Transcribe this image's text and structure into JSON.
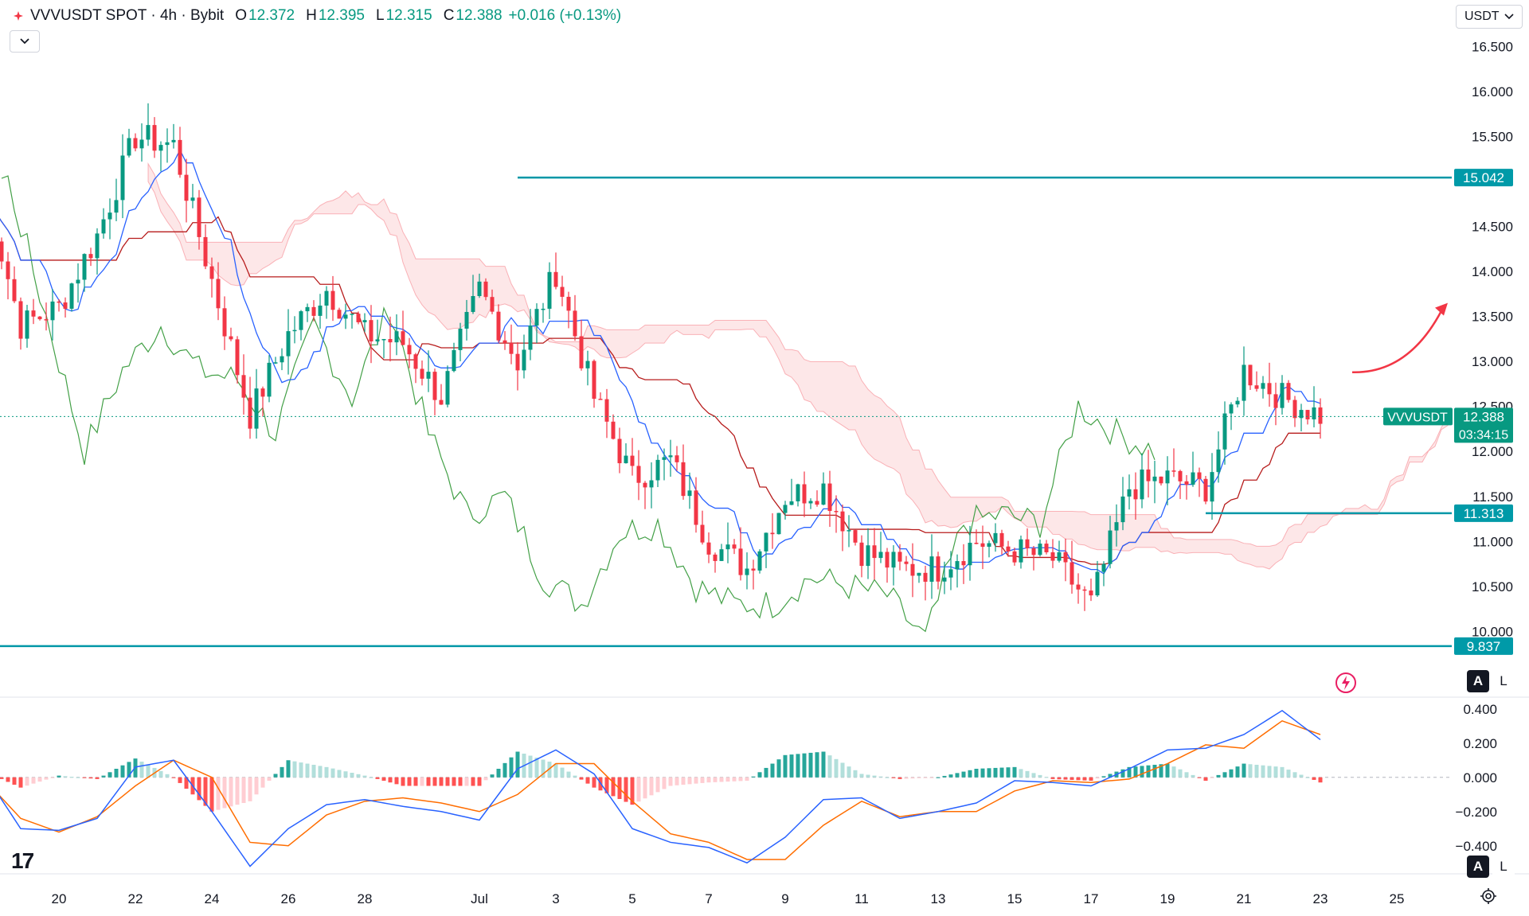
{
  "header": {
    "symbol": "VVVUSDT SPOT · 4h · Bybit",
    "open_label": "O",
    "open": "12.372",
    "high_label": "H",
    "high": "12.395",
    "low_label": "L",
    "low": "12.315",
    "close_label": "C",
    "close": "12.388",
    "change": "+0.016 (+0.13%)"
  },
  "currency": "USDT",
  "scale_buttons": {
    "auto": "A",
    "log": "L"
  },
  "icons": [
    "bybit-logo-icon",
    "chevron-down-icon",
    "flash-icon",
    "settings-icon",
    "tradingview-logo-icon"
  ],
  "logo_text": "17",
  "colors": {
    "up": "#089981",
    "down": "#f23645",
    "level_line": "#0097a7",
    "tenkan": "#2962ff",
    "kijun": "#b71c1c",
    "chikou": "#43a047",
    "macd": "#2962ff",
    "signal": "#ff6d00",
    "arrow": "#f23645"
  },
  "chart_data": {
    "type": "candlestick",
    "price_axis": {
      "ticks": [
        "16.500",
        "16.000",
        "15.500",
        "15.000",
        "14.500",
        "14.000",
        "13.500",
        "13.000",
        "12.500",
        "12.000",
        "11.500",
        "11.000",
        "10.500",
        "10.000"
      ],
      "range": [
        9.65,
        16.75
      ]
    },
    "x_axis": {
      "labels": [
        "20",
        "22",
        "24",
        "26",
        "28",
        "Jul",
        "3",
        "5",
        "7",
        "9",
        "11",
        "13",
        "15",
        "17",
        "19",
        "21",
        "23",
        "25"
      ]
    },
    "levels": [
      {
        "label": "15.042",
        "price": 15.042,
        "from_date": "Jul 2"
      },
      {
        "label": "11.313",
        "price": 11.313,
        "from_date": "Jul 20"
      },
      {
        "label": "9.837",
        "price": 9.837,
        "from_date": "Jun 18"
      }
    ],
    "last_price": {
      "symbol": "VVVUSDT",
      "price": "12.388",
      "countdown": "03:34:15"
    },
    "projection": {
      "type": "arrow",
      "direction": "up",
      "from_price": 12.88,
      "to_price": 13.65
    },
    "price_path": [
      [
        "Jun 18",
        15.0
      ],
      [
        "Jun 19",
        13.4
      ],
      [
        "Jun 20",
        13.6
      ],
      [
        "Jun 21",
        14.4
      ],
      [
        "Jun 22",
        15.5
      ],
      [
        "Jun 23",
        15.4
      ],
      [
        "Jun 24",
        13.9
      ],
      [
        "Jun 25",
        12.4
      ],
      [
        "Jun 26",
        13.3
      ],
      [
        "Jun 27",
        13.8
      ],
      [
        "Jun 28",
        13.3
      ],
      [
        "Jun 29",
        13.2
      ],
      [
        "Jun 30",
        12.6
      ],
      [
        "Jul 1",
        13.8
      ],
      [
        "Jul 2",
        13.0
      ],
      [
        "Jul 3",
        14.0
      ],
      [
        "Jul 4",
        12.6
      ],
      [
        "Jul 5",
        11.7
      ],
      [
        "Jul 6",
        11.9
      ],
      [
        "Jul 7",
        11.0
      ],
      [
        "Jul 8",
        10.7
      ],
      [
        "Jul 9",
        11.5
      ],
      [
        "Jul 10",
        11.6
      ],
      [
        "Jul 11",
        10.9
      ],
      [
        "Jul 12",
        10.7
      ],
      [
        "Jul 13",
        10.7
      ],
      [
        "Jul 14",
        11.0
      ],
      [
        "Jul 15",
        10.9
      ],
      [
        "Jul 16",
        10.8
      ],
      [
        "Jul 17",
        10.3
      ],
      [
        "Jul 18",
        11.6
      ],
      [
        "Jul 19",
        11.7
      ],
      [
        "Jul 20",
        11.6
      ],
      [
        "Jul 21",
        12.9
      ],
      [
        "Jul 22",
        12.6
      ],
      [
        "Jul 23",
        12.4
      ]
    ],
    "macd": {
      "ticks": [
        "0.400",
        "0.200",
        "0.000",
        "−0.200",
        "−0.400"
      ],
      "range": [
        -0.55,
        0.45
      ],
      "macd_line": [
        [
          "Jun 18",
          0.04
        ],
        [
          "Jun 19",
          -0.3
        ],
        [
          "Jun 20",
          -0.31
        ],
        [
          "Jun 21",
          -0.24
        ],
        [
          "Jun 22",
          0.06
        ],
        [
          "Jun 23",
          0.1
        ],
        [
          "Jun 24",
          -0.2
        ],
        [
          "Jun 25",
          -0.52
        ],
        [
          "Jun 26",
          -0.3
        ],
        [
          "Jun 27",
          -0.16
        ],
        [
          "Jun 28",
          -0.13
        ],
        [
          "Jun 29",
          -0.17
        ],
        [
          "Jun 30",
          -0.2
        ],
        [
          "Jul 1",
          -0.25
        ],
        [
          "Jul 2",
          0.05
        ],
        [
          "Jul 3",
          0.16
        ],
        [
          "Jul 4",
          0.02
        ],
        [
          "Jul 5",
          -0.3
        ],
        [
          "Jul 6",
          -0.38
        ],
        [
          "Jul 7",
          -0.41
        ],
        [
          "Jul 8",
          -0.5
        ],
        [
          "Jul 9",
          -0.35
        ],
        [
          "Jul 10",
          -0.13
        ],
        [
          "Jul 11",
          -0.12
        ],
        [
          "Jul 12",
          -0.24
        ],
        [
          "Jul 13",
          -0.2
        ],
        [
          "Jul 14",
          -0.15
        ],
        [
          "Jul 15",
          -0.02
        ],
        [
          "Jul 16",
          -0.03
        ],
        [
          "Jul 17",
          -0.05
        ],
        [
          "Jul 18",
          0.05
        ],
        [
          "Jul 19",
          0.16
        ],
        [
          "Jul 20",
          0.17
        ],
        [
          "Jul 21",
          0.25
        ],
        [
          "Jul 22",
          0.39
        ],
        [
          "Jul 23",
          0.22
        ]
      ],
      "signal_line": [
        [
          "Jun 18",
          0.0
        ],
        [
          "Jun 19",
          -0.24
        ],
        [
          "Jun 20",
          -0.32
        ],
        [
          "Jun 21",
          -0.23
        ],
        [
          "Jun 22",
          -0.05
        ],
        [
          "Jun 23",
          0.1
        ],
        [
          "Jun 24",
          0.0
        ],
        [
          "Jun 25",
          -0.38
        ],
        [
          "Jun 26",
          -0.4
        ],
        [
          "Jun 27",
          -0.22
        ],
        [
          "Jun 28",
          -0.14
        ],
        [
          "Jun 29",
          -0.12
        ],
        [
          "Jun 30",
          -0.15
        ],
        [
          "Jul 1",
          -0.2
        ],
        [
          "Jul 2",
          -0.1
        ],
        [
          "Jul 3",
          0.08
        ],
        [
          "Jul 4",
          0.08
        ],
        [
          "Jul 5",
          -0.14
        ],
        [
          "Jul 6",
          -0.33
        ],
        [
          "Jul 7",
          -0.38
        ],
        [
          "Jul 8",
          -0.48
        ],
        [
          "Jul 9",
          -0.48
        ],
        [
          "Jul 10",
          -0.28
        ],
        [
          "Jul 11",
          -0.14
        ],
        [
          "Jul 12",
          -0.23
        ],
        [
          "Jul 13",
          -0.2
        ],
        [
          "Jul 14",
          -0.2
        ],
        [
          "Jul 15",
          -0.08
        ],
        [
          "Jul 16",
          -0.02
        ],
        [
          "Jul 17",
          -0.03
        ],
        [
          "Jul 18",
          -0.01
        ],
        [
          "Jul 19",
          0.08
        ],
        [
          "Jul 20",
          0.19
        ],
        [
          "Jul 21",
          0.17
        ],
        [
          "Jul 22",
          0.33
        ],
        [
          "Jul 23",
          0.25
        ]
      ]
    },
    "grid": false,
    "legend": "none"
  }
}
